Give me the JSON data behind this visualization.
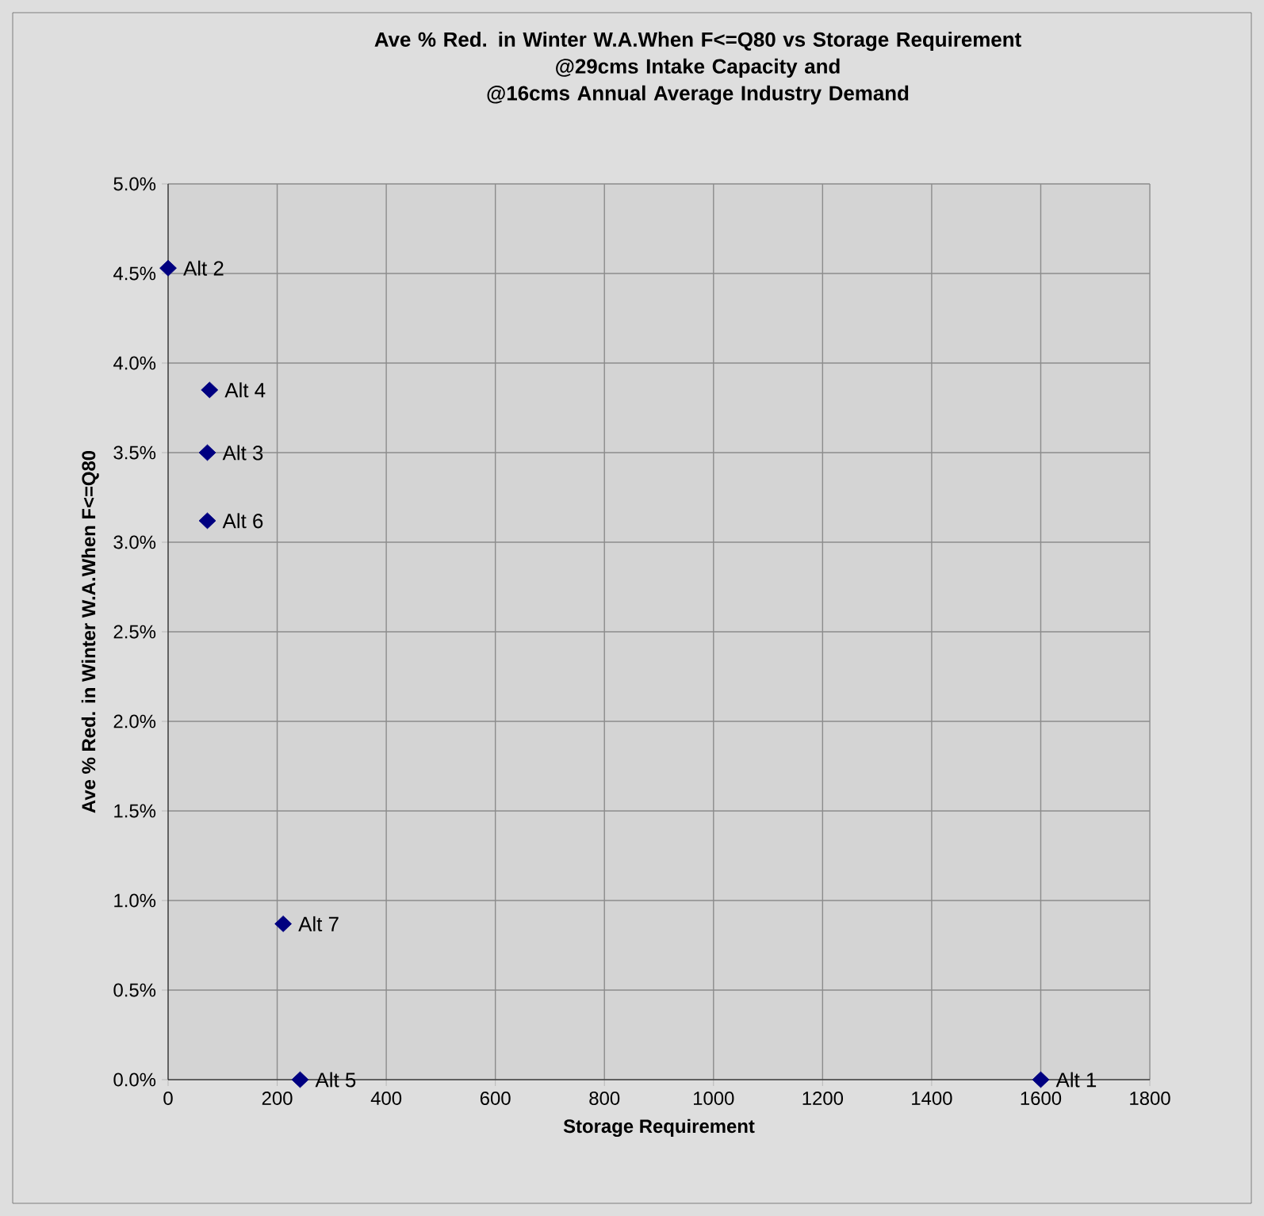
{
  "chart_data": {
    "type": "scatter",
    "title": "Ave % Red. in Winter W.A.When F<=Q80 vs Storage Requirement\n@29cms Intake Capacity and\n@16cms Annual Average Industry Demand",
    "xlabel": "Storage Requirement",
    "ylabel": "Ave % Red. in Winter W.A.When F<=Q80",
    "series": [
      {
        "name": "Alt 1",
        "color": "#000080",
        "x": [
          1600
        ],
        "values": [
          0.0
        ]
      },
      {
        "name": "Alt 2",
        "color": "#000080",
        "x": [
          0
        ],
        "values": [
          4.53
        ]
      },
      {
        "name": "Alt 3",
        "color": "#000080",
        "x": [
          72
        ],
        "values": [
          3.5
        ]
      },
      {
        "name": "Alt 4",
        "color": "#000080",
        "x": [
          76
        ],
        "values": [
          3.85
        ]
      },
      {
        "name": "Alt 5",
        "color": "#000080",
        "x": [
          242
        ],
        "values": [
          0.0
        ]
      },
      {
        "name": "Alt 6",
        "color": "#000080",
        "x": [
          72
        ],
        "values": [
          3.12
        ]
      },
      {
        "name": "Alt 7",
        "color": "#000080",
        "x": [
          211
        ],
        "values": [
          0.87
        ]
      }
    ],
    "xlim": [
      0,
      1800
    ],
    "xticks": [
      0,
      200,
      400,
      600,
      800,
      1000,
      1200,
      1400,
      1600,
      1800
    ],
    "ylim": [
      0,
      5
    ],
    "yticks": [
      {
        "value": 0,
        "label": "0.0%"
      },
      {
        "value": 0.5,
        "label": "0.5%"
      },
      {
        "value": 1,
        "label": "1.0%"
      },
      {
        "value": 1.5,
        "label": "1.5%"
      },
      {
        "value": 2,
        "label": "2.0%"
      },
      {
        "value": 2.5,
        "label": "2.5%"
      },
      {
        "value": 3,
        "label": "3.0%"
      },
      {
        "value": 3.5,
        "label": "3.5%"
      },
      {
        "value": 4,
        "label": "4.0%"
      },
      {
        "value": 4.5,
        "label": "4.5%"
      },
      {
        "value": 5,
        "label": "5.0%"
      }
    ],
    "grid": true,
    "marker": "diamond"
  }
}
